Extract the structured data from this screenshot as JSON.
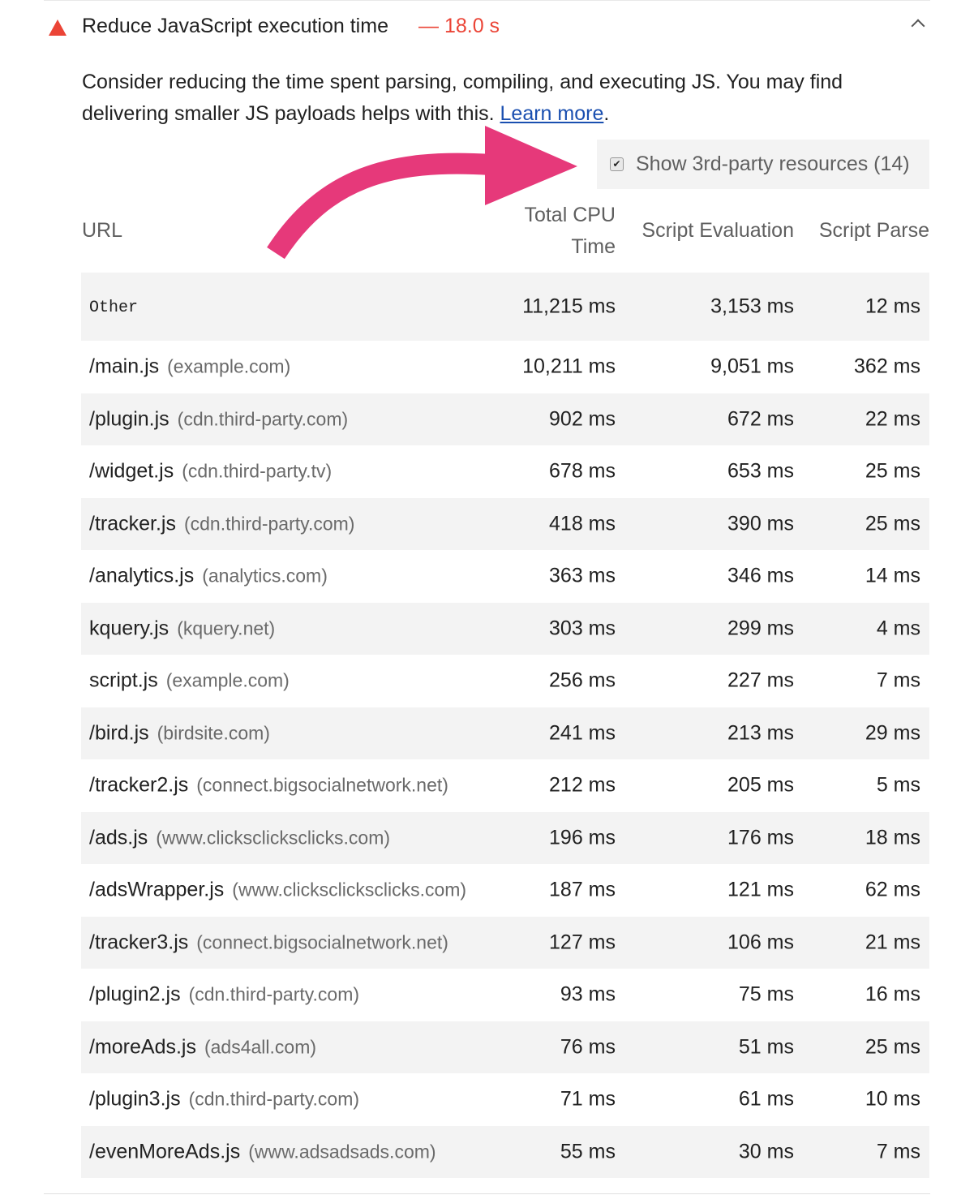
{
  "audit": {
    "title": "Reduce JavaScript execution time",
    "value": "— 18.0 s",
    "status_icon": "warning-triangle-icon",
    "status_color": "#eb4436",
    "description": "Consider reducing the time spent parsing, compiling, and executing JS. You may find delivering smaller JS payloads helps with this. ",
    "learn_more": "Learn more",
    "period": "."
  },
  "third_party_toggle": {
    "label": "Show 3rd-party resources (14)",
    "checked": true
  },
  "annotation": {
    "arrow_color": "#e6397a"
  },
  "table": {
    "headers": {
      "url": "URL",
      "total": "Total CPU Time",
      "eval": "Script Evaluation",
      "parse": "Script Parse"
    },
    "rows": [
      {
        "url": "Other",
        "host": "",
        "total": "11,215 ms",
        "eval": "3,153 ms",
        "parse": "12 ms"
      },
      {
        "url": "/main.js",
        "host": "(example.com)",
        "total": "10,211 ms",
        "eval": "9,051 ms",
        "parse": "362 ms"
      },
      {
        "url": "/plugin.js",
        "host": "(cdn.third-party.com)",
        "total": "902 ms",
        "eval": "672 ms",
        "parse": "22 ms"
      },
      {
        "url": "/widget.js",
        "host": "(cdn.third-party.tv)",
        "total": "678 ms",
        "eval": "653 ms",
        "parse": "25 ms"
      },
      {
        "url": "/tracker.js",
        "host": "(cdn.third-party.com)",
        "total": "418 ms",
        "eval": "390 ms",
        "parse": "25 ms"
      },
      {
        "url": "/analytics.js",
        "host": "(analytics.com)",
        "total": "363 ms",
        "eval": "346 ms",
        "parse": "14 ms"
      },
      {
        "url": "kquery.js",
        "host": "(kquery.net)",
        "total": "303 ms",
        "eval": "299 ms",
        "parse": "4 ms"
      },
      {
        "url": "script.js",
        "host": "(example.com)",
        "total": "256 ms",
        "eval": "227 ms",
        "parse": "7 ms"
      },
      {
        "url": "/bird.js",
        "host": "(birdsite.com)",
        "total": "241 ms",
        "eval": "213 ms",
        "parse": "29 ms"
      },
      {
        "url": "/tracker2.js",
        "host": "(connect.bigsocialnetwork.net)",
        "total": "212 ms",
        "eval": "205 ms",
        "parse": "5 ms"
      },
      {
        "url": "/ads.js",
        "host": "(www.clicksclicksclicks.com)",
        "total": "196 ms",
        "eval": "176 ms",
        "parse": "18 ms"
      },
      {
        "url": "/adsWrapper.js",
        "host": "(www.clicksclicksclicks.com)",
        "total": "187 ms",
        "eval": "121 ms",
        "parse": "62 ms"
      },
      {
        "url": "/tracker3.js",
        "host": "(connect.bigsocialnetwork.net)",
        "total": "127 ms",
        "eval": "106 ms",
        "parse": "21 ms"
      },
      {
        "url": "/plugin2.js",
        "host": "(cdn.third-party.com)",
        "total": "93 ms",
        "eval": "75 ms",
        "parse": "16 ms"
      },
      {
        "url": "/moreAds.js",
        "host": "(ads4all.com)",
        "total": "76 ms",
        "eval": "51 ms",
        "parse": "25 ms"
      },
      {
        "url": "/plugin3.js",
        "host": "(cdn.third-party.com)",
        "total": "71 ms",
        "eval": "61 ms",
        "parse": "10 ms"
      },
      {
        "url": "/evenMoreAds.js",
        "host": "(www.adsadsads.com)",
        "total": "55 ms",
        "eval": "30 ms",
        "parse": "7 ms"
      }
    ]
  }
}
